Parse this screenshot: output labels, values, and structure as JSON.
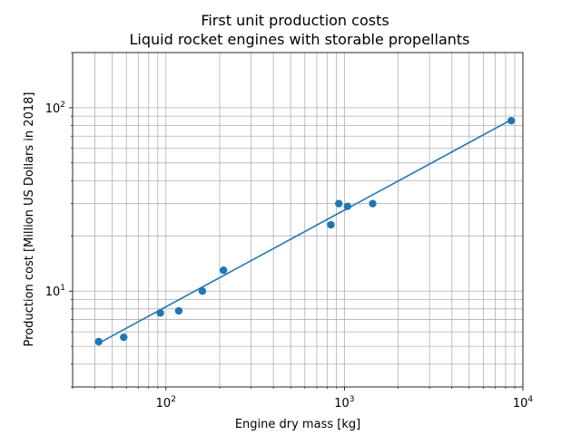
{
  "chart_data": {
    "type": "scatter",
    "title": "First unit production costs",
    "subtitle": "Liquid rocket engines with storable propellants",
    "xlabel": "Engine dry mass [kg]",
    "ylabel": "Production cost [Million US Dollars in 2018]",
    "xscale": "log",
    "yscale": "log",
    "xlim": [
      30,
      10000
    ],
    "ylim": [
      3,
      200
    ],
    "grid": true,
    "x_ticks": [
      {
        "value": 100,
        "base": "10",
        "exp": "2"
      },
      {
        "value": 1000,
        "base": "10",
        "exp": "3"
      },
      {
        "value": 10000,
        "base": "10",
        "exp": "4"
      }
    ],
    "y_ticks": [
      {
        "value": 10,
        "base": "10",
        "exp": "1"
      },
      {
        "value": 100,
        "base": "10",
        "exp": "2"
      }
    ],
    "series": [
      {
        "type": "scatter",
        "color": "#1f77b4",
        "points": [
          {
            "x": 42,
            "y": 5.3
          },
          {
            "x": 58,
            "y": 5.6
          },
          {
            "x": 93,
            "y": 7.6
          },
          {
            "x": 118,
            "y": 7.8
          },
          {
            "x": 160,
            "y": 10.0
          },
          {
            "x": 210,
            "y": 13.0
          },
          {
            "x": 840,
            "y": 23.0
          },
          {
            "x": 930,
            "y": 30.0
          },
          {
            "x": 1040,
            "y": 29.0
          },
          {
            "x": 1440,
            "y": 30.0
          },
          {
            "x": 8600,
            "y": 85.0
          }
        ]
      },
      {
        "type": "line",
        "color": "#1f77b4",
        "points": [
          {
            "x": 42,
            "y": 5.2
          },
          {
            "x": 8600,
            "y": 86.0
          }
        ]
      }
    ]
  }
}
